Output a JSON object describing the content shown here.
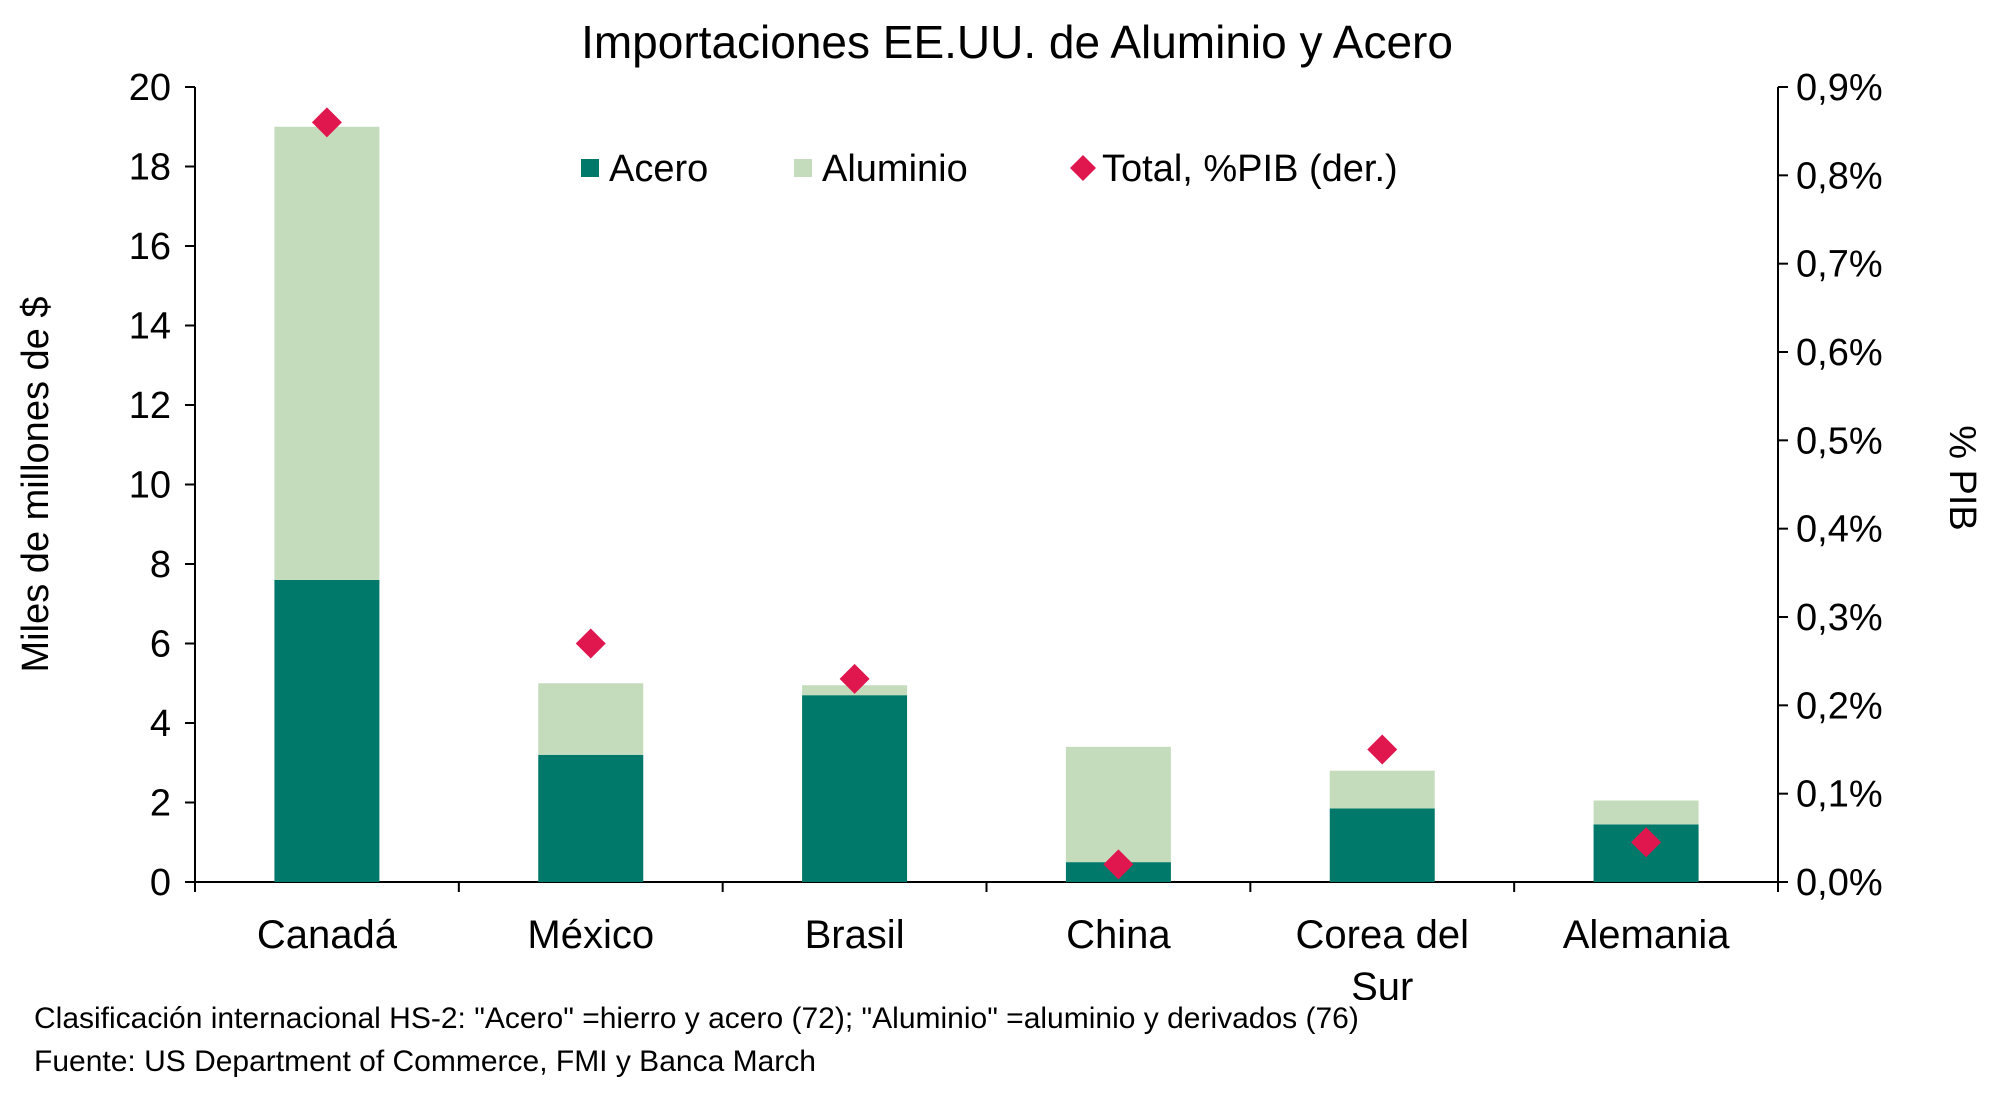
{
  "chart_data": {
    "type": "bar",
    "stacked": true,
    "title": "Importaciones EE.UU. de Aluminio y Acero",
    "categories": [
      [
        "Canadá"
      ],
      [
        "México"
      ],
      [
        "Brasil"
      ],
      [
        "China"
      ],
      [
        "Corea del",
        "Sur"
      ],
      [
        "Alemania"
      ]
    ],
    "series": [
      {
        "name": "Acero",
        "type": "bar",
        "axis": "left",
        "color": "#00796b",
        "values": [
          7.6,
          3.2,
          4.7,
          0.5,
          1.85,
          1.45
        ]
      },
      {
        "name": "Aluminio",
        "type": "bar",
        "axis": "left",
        "color": "#c5dcbc",
        "values": [
          11.4,
          1.8,
          0.25,
          2.9,
          0.95,
          0.6
        ]
      },
      {
        "name": "Total, %PIB (der.)",
        "type": "scatter",
        "axis": "right",
        "marker": "diamond",
        "color": "#e0174f",
        "values": [
          0.86,
          0.27,
          0.23,
          0.02,
          0.15,
          0.045
        ]
      }
    ],
    "ylabel": "Miles de millones de $",
    "ylim": [
      0,
      20
    ],
    "yticks": [
      0,
      2,
      4,
      6,
      8,
      10,
      12,
      14,
      16,
      18,
      20
    ],
    "y2label": "% PIB",
    "y2lim": [
      0,
      0.9
    ],
    "y2ticks": [
      "0,0%",
      "0,1%",
      "0,2%",
      "0,3%",
      "0,4%",
      "0,5%",
      "0,6%",
      "0,7%",
      "0,8%",
      "0,9%"
    ],
    "grid": false,
    "legend": "top-center"
  },
  "notes": [
    "Clasificación internacional HS-2: \"Acero\" =hierro y acero (72); \"Aluminio\" =aluminio y derivados (76)",
    "Fuente: US Department of Commerce, FMI y Banca March"
  ]
}
